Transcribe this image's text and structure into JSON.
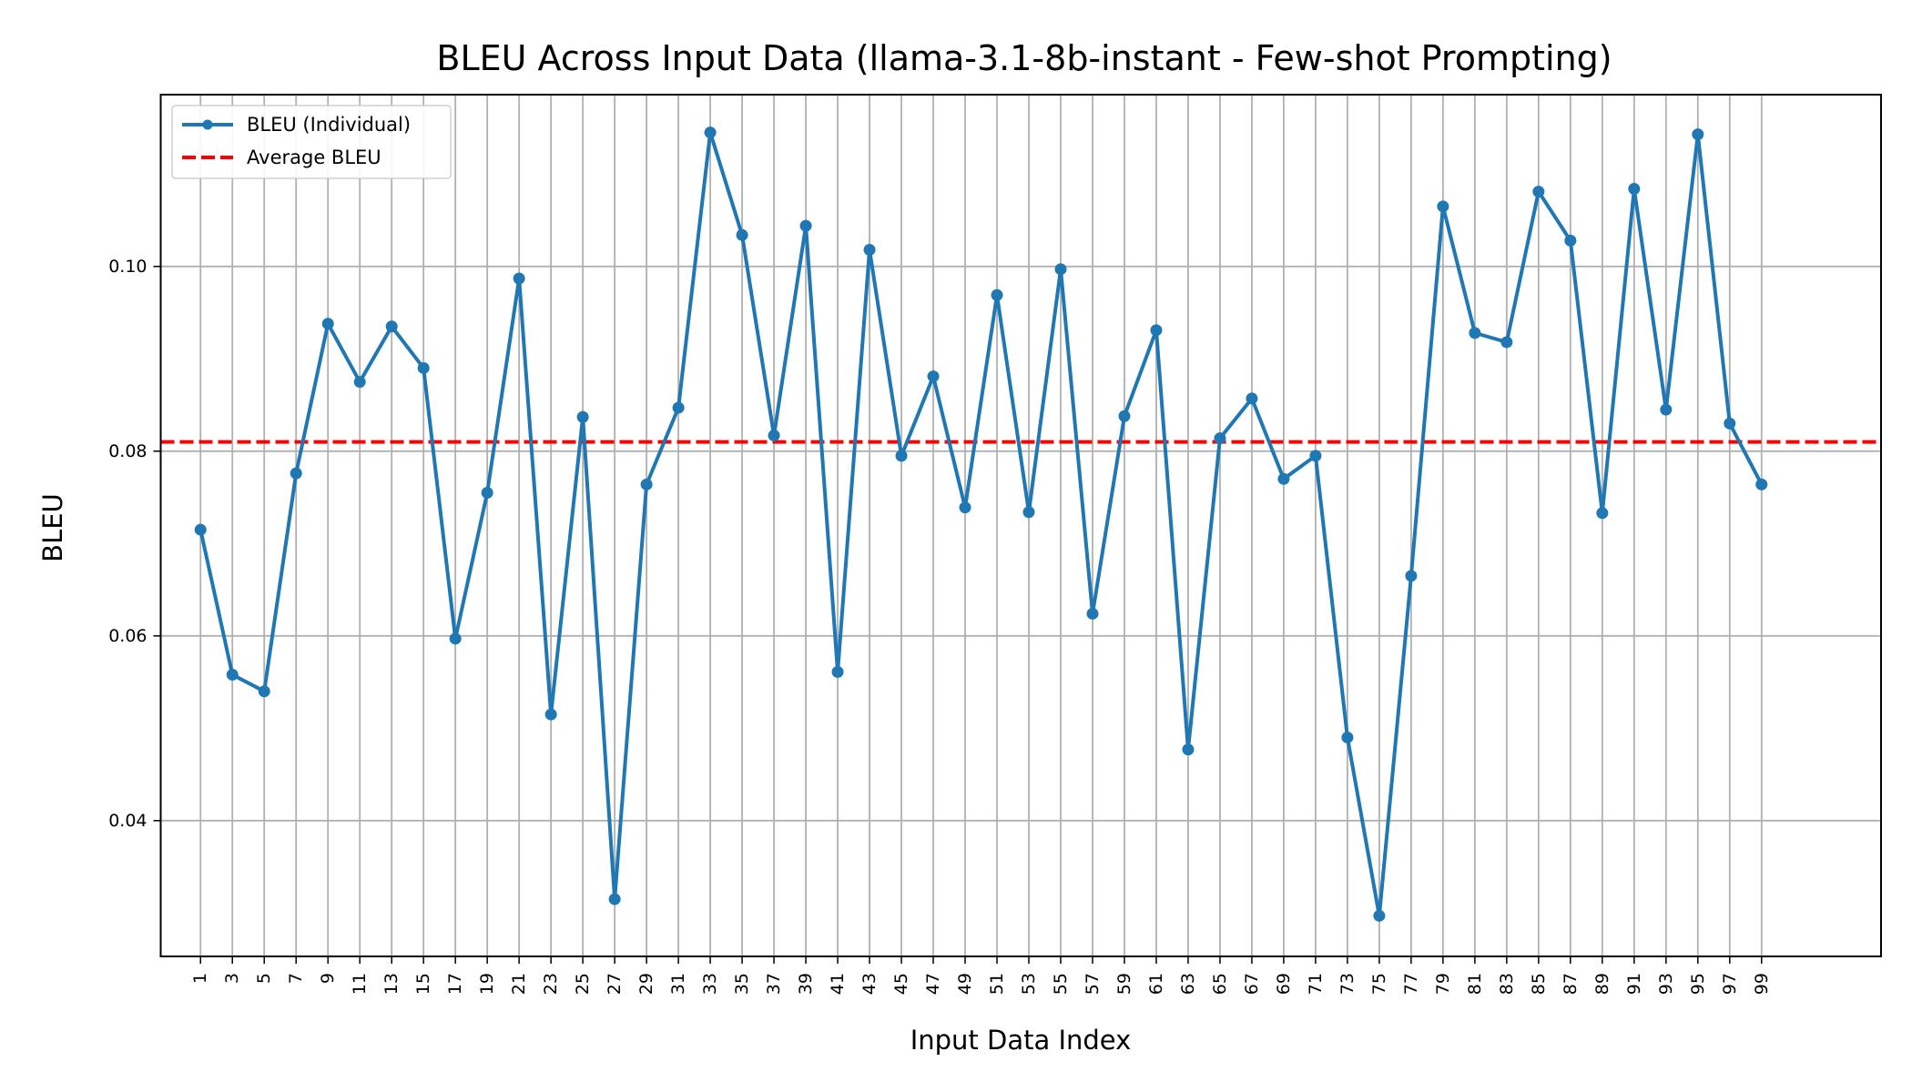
{
  "chart_data": {
    "type": "line",
    "title": "BLEU Across Input Data (llama-3.1-8b-instant - Few-shot Prompting)",
    "xlabel": "Input Data Index",
    "ylabel": "BLEU",
    "xlim": [
      -1.5,
      106.5
    ],
    "ylim": [
      0.0253,
      0.1186
    ],
    "x_ticks": [
      1,
      3,
      5,
      7,
      9,
      11,
      13,
      15,
      17,
      19,
      21,
      23,
      25,
      27,
      29,
      31,
      33,
      35,
      37,
      39,
      41,
      43,
      45,
      47,
      49,
      51,
      53,
      55,
      57,
      59,
      61,
      63,
      65,
      67,
      69,
      71,
      73,
      75,
      77,
      79,
      81,
      83,
      85,
      87,
      89,
      91,
      93,
      95,
      97,
      99
    ],
    "y_ticks": [
      0.04,
      0.06,
      0.08,
      0.1
    ],
    "y_tick_labels": [
      "0.04",
      "0.06",
      "0.08",
      "0.10"
    ],
    "grid": true,
    "legend_position": "top-left",
    "series": [
      {
        "name": "BLEU (Individual)",
        "style": "line-with-markers",
        "color": "#1f77b4",
        "x": [
          1,
          3,
          5,
          7,
          9,
          11,
          13,
          15,
          17,
          19,
          21,
          23,
          25,
          27,
          29,
          31,
          33,
          35,
          37,
          39,
          41,
          43,
          45,
          47,
          49,
          51,
          53,
          55,
          57,
          59,
          61,
          63,
          65,
          67,
          69,
          71,
          73,
          75,
          77,
          79,
          81,
          83,
          85,
          87,
          89,
          91,
          93,
          95,
          97,
          99
        ],
        "values": [
          0.0715,
          0.0558,
          0.054,
          0.0776,
          0.0938,
          0.0875,
          0.0935,
          0.089,
          0.0597,
          0.0755,
          0.0987,
          0.0515,
          0.0837,
          0.0315,
          0.0764,
          0.0847,
          0.1145,
          0.1034,
          0.0817,
          0.1044,
          0.0561,
          0.1018,
          0.0795,
          0.0881,
          0.0739,
          0.0969,
          0.0734,
          0.0997,
          0.0624,
          0.0838,
          0.0931,
          0.0477,
          0.0814,
          0.0857,
          0.077,
          0.0795,
          0.049,
          0.0297,
          0.0665,
          0.1065,
          0.0928,
          0.0918,
          0.1081,
          0.1028,
          0.0733,
          0.1084,
          0.0845,
          0.1143,
          0.083,
          0.0764
        ]
      },
      {
        "name": "Average BLEU",
        "style": "dashed-horizontal",
        "color": "#ff0000",
        "value": 0.081
      }
    ]
  }
}
